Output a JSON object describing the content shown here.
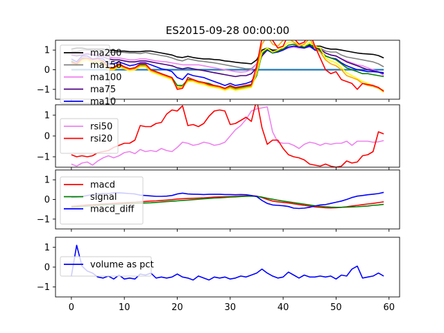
{
  "title": "ES2015-09-28 00:00:00",
  "chart_data": [
    {
      "type": "line",
      "ylim": [
        -1.5,
        1.5
      ],
      "xlim": [
        -3,
        62
      ],
      "yticks": [
        -1,
        0,
        1
      ],
      "legend_position": "upper-left",
      "baseline": {
        "y": 0,
        "color": "#1f77b4",
        "x_range": [
          0,
          59
        ]
      },
      "series": [
        {
          "name": "ma200",
          "color": "#000000",
          "values": [
            1.05,
            1.1,
            1.1,
            1.05,
            1.05,
            1.05,
            1.05,
            1.0,
            0.98,
            0.95,
            0.95,
            0.92,
            0.92,
            0.92,
            0.95,
            0.95,
            0.9,
            0.85,
            0.8,
            0.75,
            0.65,
            0.62,
            0.68,
            0.62,
            0.58,
            0.55,
            0.55,
            0.52,
            0.5,
            0.45,
            0.42,
            0.38,
            0.35,
            0.33,
            0.3,
            0.5,
            1.0,
            1.1,
            1.0,
            1.0,
            1.05,
            1.1,
            1.2,
            1.2,
            1.2,
            1.25,
            1.2,
            1.2,
            1.1,
            1.05,
            1.05,
            1.0,
            0.95,
            0.9,
            0.85,
            0.82,
            0.8,
            0.78,
            0.72,
            0.6
          ]
        },
        {
          "name": "ma150",
          "color": "#808080",
          "values": [
            0.95,
            0.92,
            1.0,
            1.0,
            0.98,
            0.98,
            0.95,
            0.9,
            0.88,
            0.9,
            0.88,
            0.85,
            0.85,
            0.82,
            0.88,
            0.82,
            0.78,
            0.72,
            0.68,
            0.6,
            0.5,
            0.45,
            0.55,
            0.5,
            0.45,
            0.42,
            0.38,
            0.35,
            0.3,
            0.25,
            0.2,
            0.15,
            0.1,
            0.05,
            0.05,
            0.3,
            0.9,
            1.05,
            0.95,
            0.95,
            1.05,
            1.1,
            1.2,
            1.15,
            1.15,
            1.2,
            1.15,
            1.1,
            0.95,
            0.9,
            0.9,
            0.75,
            0.65,
            0.6,
            0.55,
            0.5,
            0.45,
            0.4,
            0.3,
            0.15
          ]
        },
        {
          "name": "ma100",
          "color": "#ee82ee",
          "values": [
            0.8,
            0.75,
            0.8,
            0.85,
            0.8,
            0.78,
            0.75,
            0.65,
            0.6,
            0.6,
            0.55,
            0.5,
            0.5,
            0.55,
            0.55,
            0.5,
            0.45,
            0.42,
            0.4,
            0.35,
            0.3,
            0.25,
            0.25,
            0.25,
            0.25,
            0.2,
            0.15,
            0.1,
            0.05,
            0.0,
            -0.05,
            -0.1,
            -0.12,
            -0.1,
            0.0,
            0.3,
            0.8,
            1.0,
            0.9,
            0.9,
            1.0,
            1.1,
            1.15,
            1.1,
            1.1,
            1.15,
            1.05,
            1.05,
            0.85,
            0.75,
            0.7,
            0.55,
            0.45,
            0.35,
            0.25,
            0.2,
            0.1,
            0.0,
            -0.1,
            -0.3
          ]
        },
        {
          "name": "ma75",
          "color": "#4b0082",
          "values": [
            0.75,
            0.7,
            0.75,
            0.8,
            0.75,
            0.7,
            0.65,
            0.55,
            0.5,
            0.5,
            0.45,
            0.4,
            0.4,
            0.45,
            0.45,
            0.4,
            0.35,
            0.3,
            0.25,
            0.2,
            0.1,
            0.05,
            0.1,
            0.05,
            0.0,
            -0.05,
            -0.1,
            -0.15,
            -0.2,
            -0.25,
            -0.3,
            -0.35,
            -0.3,
            -0.3,
            -0.2,
            0.1,
            0.7,
            1.0,
            0.95,
            0.95,
            1.05,
            1.15,
            1.2,
            1.15,
            1.15,
            1.2,
            1.1,
            1.05,
            0.85,
            0.75,
            0.7,
            0.55,
            0.4,
            0.3,
            0.2,
            0.1,
            0.0,
            -0.05,
            -0.12,
            -0.2
          ]
        },
        {
          "name": "ma10",
          "color": "#0000ff",
          "values": [
            0.55,
            0.4,
            0.7,
            0.7,
            0.55,
            0.6,
            0.55,
            0.3,
            0.3,
            0.4,
            0.3,
            0.2,
            0.25,
            0.35,
            0.35,
            0.25,
            0.15,
            0.05,
            0.0,
            -0.1,
            -0.4,
            -0.5,
            -0.2,
            -0.3,
            -0.35,
            -0.4,
            -0.5,
            -0.6,
            -0.7,
            -0.8,
            -0.7,
            -0.8,
            -0.75,
            -0.7,
            -0.6,
            -0.2,
            0.8,
            1.0,
            0.85,
            0.9,
            1.0,
            1.15,
            1.2,
            1.15,
            1.1,
            1.2,
            1.0,
            0.95,
            0.7,
            0.6,
            0.55,
            0.35,
            0.2,
            0.1,
            0.0,
            -0.05,
            -0.1,
            -0.1,
            -0.12,
            -0.15
          ]
        },
        {
          "name": "",
          "color": "#008000",
          "values": [
            0.45,
            0.3,
            0.55,
            0.55,
            0.4,
            0.45,
            0.4,
            0.1,
            0.1,
            0.25,
            0.15,
            0.05,
            0.1,
            0.25,
            0.25,
            0.0,
            -0.1,
            -0.2,
            -0.3,
            -0.4,
            -0.8,
            -0.8,
            -0.5,
            -0.5,
            -0.6,
            -0.65,
            -0.7,
            -0.8,
            -0.85,
            -0.95,
            -0.85,
            -0.95,
            -0.9,
            -0.85,
            -0.8,
            -0.3,
            0.8,
            1.05,
            0.85,
            0.95,
            1.05,
            1.25,
            1.3,
            1.2,
            1.15,
            1.3,
            1.1,
            1.0,
            0.7,
            0.6,
            0.5,
            0.3,
            0.1,
            0.0,
            -0.1,
            -0.2,
            -0.2,
            -0.25,
            -0.3,
            -0.35
          ]
        },
        {
          "name": "",
          "color": "#ffff00",
          "values": [
            0.3,
            0.2,
            0.4,
            0.5,
            0.35,
            0.35,
            0.3,
            0.0,
            0.0,
            0.15,
            0.05,
            -0.05,
            0.0,
            0.15,
            0.15,
            -0.1,
            -0.2,
            -0.3,
            -0.4,
            -0.5,
            -0.95,
            -0.9,
            -0.6,
            -0.6,
            -0.7,
            -0.75,
            -0.85,
            -0.9,
            -0.95,
            -1.05,
            -0.95,
            -1.05,
            -1.0,
            -0.95,
            -0.9,
            -0.2,
            0.9,
            1.1,
            0.9,
            1.0,
            1.15,
            1.4,
            1.4,
            1.3,
            1.2,
            1.4,
            1.2,
            1.1,
            0.6,
            0.45,
            0.35,
            0.1,
            -0.15,
            -0.3,
            -0.45,
            -0.6,
            -0.7,
            -0.8,
            -0.95,
            -1.15
          ]
        },
        {
          "name": "",
          "color": "#ffa500",
          "values": [
            0.35,
            0.25,
            0.5,
            0.55,
            0.4,
            0.45,
            0.35,
            0.05,
            0.05,
            0.2,
            0.1,
            0.0,
            0.05,
            0.2,
            0.2,
            -0.05,
            -0.15,
            -0.25,
            -0.35,
            -0.45,
            -0.9,
            -0.85,
            -0.55,
            -0.55,
            -0.65,
            -0.7,
            -0.8,
            -0.85,
            -0.9,
            -1.0,
            -0.9,
            -1.0,
            -0.95,
            -0.9,
            -0.85,
            -0.1,
            1.3,
            1.7,
            1.3,
            1.2,
            1.5,
            1.6,
            1.4,
            1.2,
            1.3,
            1.6,
            1.1,
            0.9,
            0.5,
            0.3,
            0.2,
            0.0,
            -0.3,
            -0.4,
            -0.5,
            -0.7,
            -0.8,
            -0.85,
            -0.95,
            -1.05
          ]
        },
        {
          "name": "",
          "color": "#ff0000",
          "values": [
            0.4,
            0.3,
            0.6,
            0.6,
            0.5,
            0.55,
            0.45,
            0.1,
            0.1,
            0.3,
            0.15,
            0.05,
            0.1,
            0.3,
            0.3,
            0.0,
            -0.1,
            -0.2,
            -0.3,
            -0.4,
            -1.0,
            -0.95,
            -0.4,
            -0.5,
            -0.6,
            -0.65,
            -0.75,
            -0.8,
            -0.85,
            -0.95,
            -0.8,
            -0.9,
            -0.85,
            -0.8,
            -0.75,
            0.2,
            1.6,
            1.8,
            1.5,
            1.1,
            1.2,
            1.8,
            1.6,
            1.3,
            1.4,
            1.9,
            1.2,
            0.6,
            0.0,
            -0.2,
            -0.1,
            -0.5,
            -0.6,
            -0.7,
            -1.0,
            -0.7,
            -0.75,
            -0.8,
            -0.9,
            -1.1
          ]
        }
      ]
    },
    {
      "type": "line",
      "ylim": [
        -1.5,
        1.5
      ],
      "xlim": [
        -3,
        62
      ],
      "yticks": [
        -1,
        0,
        1
      ],
      "legend_position": "center-left",
      "series": [
        {
          "name": "rsi50",
          "color": "#ee82ee",
          "values": [
            -1.35,
            -1.45,
            -1.3,
            -1.25,
            -1.4,
            -1.2,
            -1.05,
            -0.95,
            -1.05,
            -0.95,
            -0.8,
            -0.75,
            -0.85,
            -0.65,
            -0.75,
            -0.7,
            -0.75,
            -0.6,
            -0.7,
            -0.75,
            -0.55,
            -0.3,
            -0.35,
            -0.45,
            -0.4,
            -0.3,
            -0.35,
            -0.45,
            -0.4,
            -0.3,
            0.0,
            0.3,
            0.5,
            0.8,
            1.2,
            1.3,
            1.35,
            1.4,
            0.2,
            -0.3,
            -0.35,
            -0.35,
            -0.45,
            -0.6,
            -0.4,
            -0.3,
            -0.35,
            -0.45,
            -0.35,
            -0.4,
            -0.35,
            -0.35,
            -0.25,
            -0.45,
            -0.25,
            -0.25,
            -0.25,
            -0.3,
            -0.28,
            -0.22
          ]
        },
        {
          "name": "rsi20",
          "color": "#ff0000",
          "values": [
            -0.9,
            -1.0,
            -0.95,
            -1.0,
            -0.95,
            -0.8,
            -0.75,
            -0.7,
            -0.55,
            -0.45,
            -0.35,
            -0.35,
            -0.2,
            0.5,
            0.45,
            0.45,
            0.6,
            0.65,
            1.05,
            1.25,
            1.2,
            1.45,
            0.5,
            0.55,
            0.45,
            0.6,
            0.95,
            1.2,
            1.25,
            1.2,
            0.55,
            0.6,
            0.75,
            0.9,
            0.7,
            1.75,
            0.4,
            -0.4,
            -0.2,
            -0.2,
            -0.6,
            -0.9,
            -1.0,
            -1.05,
            -1.15,
            -1.35,
            -1.4,
            -1.45,
            -1.35,
            -1.45,
            -1.5,
            -1.45,
            -1.2,
            -1.3,
            -1.25,
            -0.95,
            -0.9,
            -0.75,
            0.2,
            0.1
          ]
        }
      ]
    },
    {
      "type": "line",
      "ylim": [
        -1.5,
        1.5
      ],
      "xlim": [
        -3,
        62
      ],
      "yticks": [
        -1,
        0,
        1
      ],
      "legend_position": "upper-left",
      "series": [
        {
          "name": "macd",
          "color": "#ff0000",
          "values": [
            -0.35,
            -0.33,
            -0.3,
            -0.28,
            -0.27,
            -0.25,
            -0.23,
            -0.22,
            -0.2,
            -0.18,
            -0.17,
            -0.15,
            -0.14,
            -0.12,
            -0.1,
            -0.08,
            -0.07,
            -0.05,
            -0.03,
            -0.01,
            0.02,
            0.04,
            0.05,
            0.06,
            0.07,
            0.08,
            0.1,
            0.12,
            0.13,
            0.14,
            0.15,
            0.16,
            0.17,
            0.18,
            0.19,
            0.17,
            0.1,
            0.0,
            -0.08,
            -0.12,
            -0.15,
            -0.18,
            -0.22,
            -0.26,
            -0.3,
            -0.34,
            -0.38,
            -0.4,
            -0.42,
            -0.43,
            -0.42,
            -0.4,
            -0.37,
            -0.33,
            -0.3,
            -0.26,
            -0.23,
            -0.2,
            -0.16,
            -0.12
          ]
        },
        {
          "name": "signal",
          "color": "#008000",
          "values": [
            -0.4,
            -0.38,
            -0.36,
            -0.34,
            -0.32,
            -0.3,
            -0.28,
            -0.26,
            -0.25,
            -0.24,
            -0.22,
            -0.21,
            -0.2,
            -0.19,
            -0.18,
            -0.17,
            -0.15,
            -0.13,
            -0.11,
            -0.09,
            -0.07,
            -0.05,
            -0.03,
            -0.01,
            0.01,
            0.03,
            0.05,
            0.07,
            0.08,
            0.1,
            0.12,
            0.13,
            0.15,
            0.16,
            0.17,
            0.16,
            0.12,
            0.06,
            0.01,
            -0.04,
            -0.08,
            -0.12,
            -0.16,
            -0.2,
            -0.24,
            -0.28,
            -0.32,
            -0.35,
            -0.37,
            -0.39,
            -0.4,
            -0.4,
            -0.39,
            -0.38,
            -0.37,
            -0.35,
            -0.33,
            -0.3,
            -0.28,
            -0.25
          ]
        },
        {
          "name": "macd_diff",
          "color": "#0000ff",
          "values": [
            0.1,
            0.12,
            0.15,
            0.2,
            0.24,
            0.28,
            0.3,
            0.3,
            0.33,
            0.34,
            0.32,
            0.3,
            0.28,
            0.22,
            0.2,
            0.18,
            0.16,
            0.16,
            0.17,
            0.2,
            0.28,
            0.32,
            0.28,
            0.27,
            0.26,
            0.25,
            0.26,
            0.26,
            0.26,
            0.25,
            0.25,
            0.24,
            0.25,
            0.24,
            0.2,
            0.15,
            -0.05,
            -0.2,
            -0.28,
            -0.3,
            -0.32,
            -0.36,
            -0.44,
            -0.46,
            -0.44,
            -0.4,
            -0.33,
            -0.28,
            -0.26,
            -0.2,
            -0.14,
            -0.08,
            0.0,
            0.1,
            0.17,
            0.2,
            0.24,
            0.27,
            0.3,
            0.36
          ]
        }
      ]
    },
    {
      "type": "line",
      "ylim": [
        -1.5,
        1.5
      ],
      "xlim": [
        -3,
        62
      ],
      "yticks": [
        -1,
        0,
        1
      ],
      "xticks": [
        0,
        10,
        20,
        30,
        40,
        50,
        60
      ],
      "legend_position": "center-left",
      "series": [
        {
          "name": "volume as pct",
          "color": "#0000ff",
          "values": [
            -0.45,
            1.1,
            0.05,
            -0.2,
            -0.3,
            -0.5,
            -0.55,
            -0.45,
            -0.6,
            -0.4,
            -0.6,
            -0.55,
            -0.6,
            -0.35,
            -0.4,
            -0.3,
            -0.55,
            -0.5,
            -0.55,
            -0.5,
            -0.35,
            -0.5,
            -0.55,
            -0.65,
            -0.45,
            -0.55,
            -0.65,
            -0.5,
            -0.55,
            -0.5,
            -0.6,
            -0.55,
            -0.45,
            -0.5,
            -0.4,
            -0.3,
            -0.1,
            -0.3,
            -0.45,
            -0.55,
            -0.5,
            -0.25,
            -0.4,
            -0.55,
            -0.4,
            -0.5,
            -0.5,
            -0.45,
            -0.5,
            -0.45,
            -0.6,
            -0.4,
            -0.45,
            -0.1,
            0.05,
            -0.55,
            -0.5,
            -0.45,
            -0.3,
            -0.45
          ]
        }
      ]
    }
  ]
}
